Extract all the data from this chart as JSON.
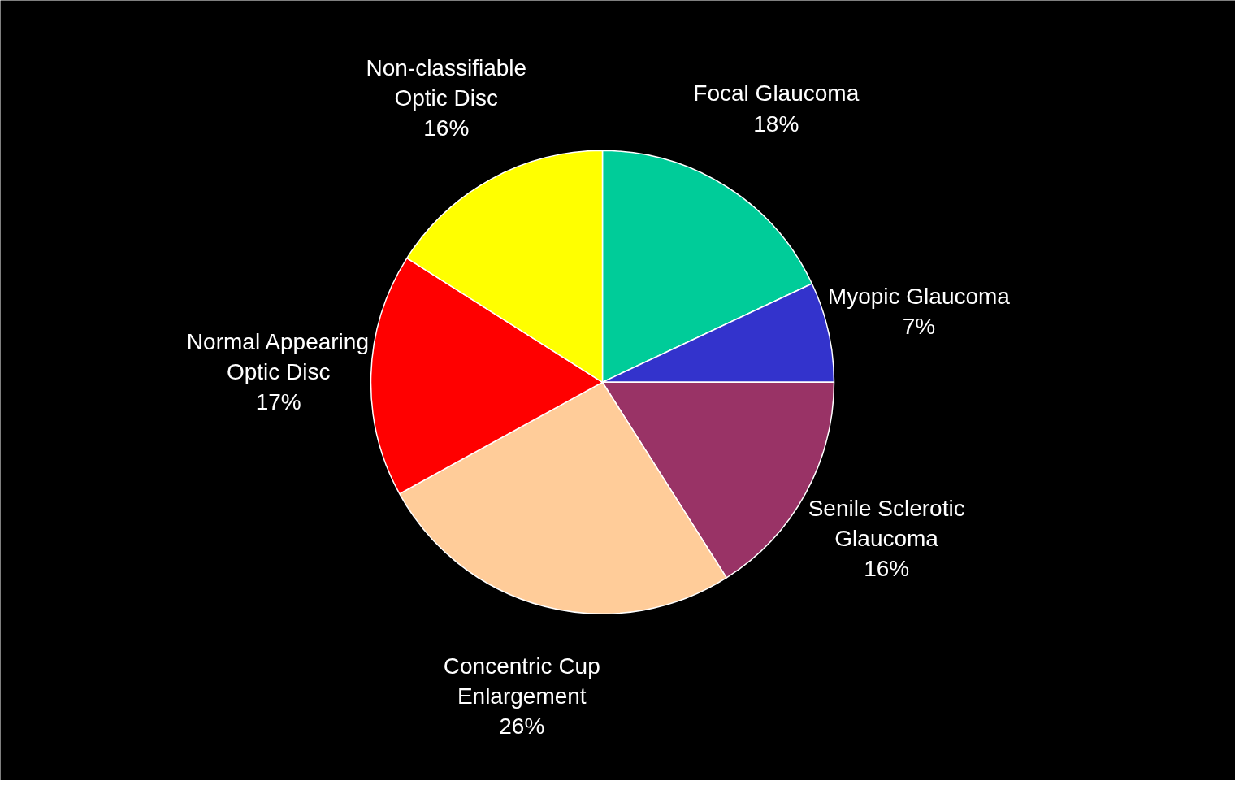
{
  "chart_data": {
    "type": "pie",
    "categories": [
      "Focal Glaucoma",
      "Myopic Glaucoma",
      "Senile Sclerotic\nGlaucoma",
      "Concentric Cup\nEnlargement",
      "Normal Appearing\nOptic Disc",
      "Non-classifiable\nOptic Disc"
    ],
    "values": [
      18,
      7,
      16,
      26,
      17,
      16
    ],
    "colors": [
      "#00cc99",
      "#3333cc",
      "#993366",
      "#ffcc99",
      "#ff0000",
      "#ffff00"
    ],
    "value_labels": [
      "18%",
      "7%",
      "16%",
      "26%",
      "17%",
      "16%"
    ]
  }
}
